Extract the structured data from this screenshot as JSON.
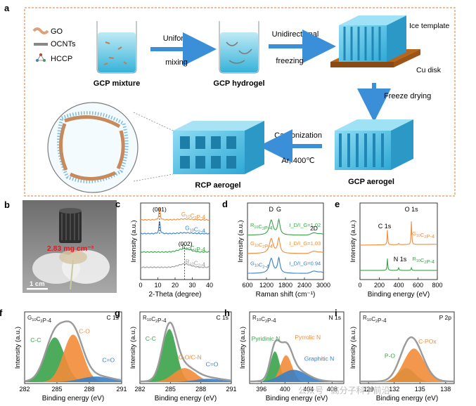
{
  "panel_a": {
    "letter": "a",
    "legend": [
      {
        "label": "GO",
        "color": "#d9a27a"
      },
      {
        "label": "OCNTs",
        "color": "#888888"
      },
      {
        "label": "HCCP",
        "color": "#c0392b"
      }
    ],
    "step1_label": "GCP mixture",
    "arrow1_top": "Uniform",
    "arrow1_bottom": "mixing",
    "step2_label": "GCP hydrogel",
    "arrow2_top": "Unidirectional",
    "arrow2_bottom": "freezing",
    "ice_template": "Ice template",
    "cu_disk": "Cu disk",
    "freeze_drying": "Freeze drying",
    "step3_label": "GCP aerogel",
    "arrow3_top": "Carbonization",
    "arrow3_bottom": "Ar, 400℃",
    "step4_label": "RCP aerogel",
    "colors": {
      "blue": "#5cc8e8",
      "arrow": "#3a8fd8",
      "copper": "#b5651d",
      "border": "#e07b3a"
    }
  },
  "panel_b": {
    "letter": "b",
    "density": "2.83 mg cm⁻³",
    "scale": "1 cm"
  },
  "chart_data": [
    {
      "id": "c",
      "type": "line",
      "xlabel": "2-Theta (degree)",
      "ylabel": "Intensity (a.u.)",
      "xlim": [
        0,
        40
      ],
      "xticks": [
        0,
        10,
        20,
        30,
        40
      ],
      "annotations": [
        "(001)",
        "(002)"
      ],
      "series": [
        {
          "name": "G10C2P-4",
          "color": "#f28c3a"
        },
        {
          "name": "G10C2-4",
          "color": "#3a7fc4"
        },
        {
          "name": "R10C2P-4",
          "color": "#3aa34a"
        },
        {
          "name": "R10C2-4",
          "color": "#9a9a9a"
        }
      ]
    },
    {
      "id": "d",
      "type": "line",
      "xlabel": "Raman shift (cm⁻¹)",
      "ylabel": "Intensity (a.u.)",
      "xlim": [
        600,
        3000
      ],
      "xticks": [
        600,
        1200,
        1800,
        2400,
        3000
      ],
      "peaks": [
        "D",
        "G",
        "2D"
      ],
      "series": [
        {
          "name": "R10C2P-4",
          "ratio": "I_D/I_G=1.02",
          "color": "#3aa34a"
        },
        {
          "name": "G10C2P-4",
          "ratio": "I_D/I_G=1.03",
          "color": "#f28c3a"
        },
        {
          "name": "G10C2-4",
          "ratio": "I_D/I_G=0.94",
          "color": "#3a7fc4"
        }
      ]
    },
    {
      "id": "e",
      "type": "line",
      "xlabel": "Binding energy (eV)",
      "ylabel": "Intensity (a.u.)",
      "xlim": [
        0,
        800
      ],
      "xticks": [
        0,
        200,
        400,
        600,
        800
      ],
      "peaks": [
        "C 1s",
        "N 1s",
        "O 1s"
      ],
      "series": [
        {
          "name": "G10C2P-4",
          "color": "#f28c3a"
        },
        {
          "name": "R10C2P-4",
          "color": "#3aa34a"
        }
      ]
    },
    {
      "id": "f",
      "type": "area",
      "sample": "G10C2P-4",
      "region": "C 1s",
      "xlabel": "Binding energy (eV)",
      "ylabel": "Intensity (a.u.)",
      "xlim": [
        291,
        282
      ],
      "xticks": [
        282,
        285,
        288,
        291
      ],
      "components": [
        {
          "name": "C-C",
          "color": "#3aa34a"
        },
        {
          "name": "C-O",
          "color": "#f28c3a"
        },
        {
          "name": "C=O",
          "color": "#3a7fc4"
        }
      ]
    },
    {
      "id": "g",
      "type": "area",
      "sample": "R10C2P-4",
      "region": "C 1s",
      "xlabel": "Binding energy (eV)",
      "ylabel": "Intensity (a.u.)",
      "xlim": [
        291,
        282
      ],
      "xticks": [
        282,
        285,
        288,
        291
      ],
      "components": [
        {
          "name": "C-C",
          "color": "#3aa34a"
        },
        {
          "name": "C-O/C-N",
          "color": "#f28c3a"
        },
        {
          "name": "C=O",
          "color": "#3a7fc4"
        }
      ]
    },
    {
      "id": "h",
      "type": "area",
      "sample": "R10C2P-4",
      "region": "N 1s",
      "xlabel": "Binding energy (eV)",
      "ylabel": "Intensity (a.u.)",
      "xticks": [
        396,
        400,
        404,
        408
      ],
      "components": [
        {
          "name": "Pyridinic N",
          "color": "#3aa34a"
        },
        {
          "name": "Pyrrolic N",
          "color": "#f28c3a"
        },
        {
          "name": "Graphitic N",
          "color": "#3a7fc4"
        }
      ]
    },
    {
      "id": "i",
      "type": "area",
      "sample": "R10C2P-4",
      "region": "P 2p",
      "xlabel": "Binding energy (eV)",
      "ylabel": "Intensity (a.u.)",
      "xticks": [
        129,
        132,
        135,
        138
      ],
      "components": [
        {
          "name": "P-O",
          "color": "#3aa34a"
        },
        {
          "name": "C-POx",
          "color": "#f28c3a"
        }
      ]
    }
  ],
  "watermark": "公众号 · 高分子科学前沿"
}
